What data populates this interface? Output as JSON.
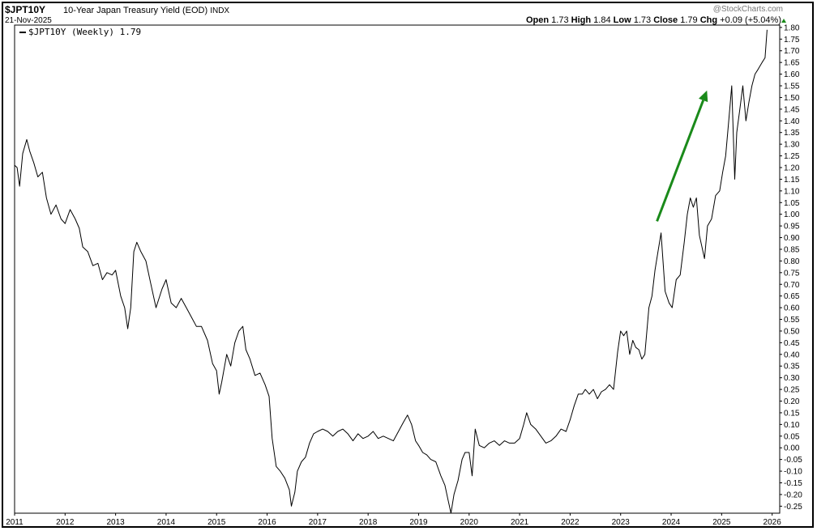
{
  "header": {
    "symbol": "$JPT10Y",
    "name": "10-Year Japan Treasury Yield (EOD)",
    "exchange": "INDX",
    "date": "21-Nov-2025",
    "brand": "@StockCharts.com",
    "ohlc": {
      "open_label": "Open",
      "open": "1.73",
      "high_label": "High",
      "high": "1.84",
      "low_label": "Low",
      "low": "1.73",
      "close_label": "Close",
      "close": "1.79",
      "chg_label": "Chg",
      "chg": "+0.09 (+5.04%)"
    },
    "legend": "$JPT10Y (Weekly) 1.79"
  },
  "colors": {
    "line": "#000000",
    "arrow": "#1a8a1a",
    "up": "#1a8a1a"
  },
  "chart_data": {
    "type": "line",
    "xlabel": "",
    "ylabel": "",
    "xlim": [
      2011.0,
      2026.15
    ],
    "ylim": [
      -0.28,
      1.81
    ],
    "x_tick_labels": [
      "2011",
      "2012",
      "2013",
      "2014",
      "2015",
      "2016",
      "2017",
      "2018",
      "2019",
      "2020",
      "2021",
      "2022",
      "2023",
      "2024",
      "2025",
      "2026"
    ],
    "y_tick_labels": [
      "1.80",
      "1.75",
      "1.70",
      "1.65",
      "1.60",
      "1.55",
      "1.50",
      "1.45",
      "1.40",
      "1.35",
      "1.30",
      "1.25",
      "1.20",
      "1.15",
      "1.10",
      "1.05",
      "1.00",
      "0.95",
      "0.90",
      "0.85",
      "0.80",
      "0.75",
      "0.70",
      "0.65",
      "0.60",
      "0.55",
      "0.50",
      "0.45",
      "0.40",
      "0.35",
      "0.30",
      "0.25",
      "0.20",
      "0.15",
      "0.10",
      "0.05",
      "0.00",
      "-0.05",
      "-0.10",
      "-0.15",
      "-0.20",
      "-0.25"
    ],
    "grid": false,
    "legend_position": "top-left",
    "annotation": {
      "type": "arrow",
      "from": {
        "x": 2023.72,
        "y": 0.97
      },
      "to": {
        "x": 2024.71,
        "y": 1.53
      }
    },
    "series": [
      {
        "name": "$JPT10Y (Weekly)",
        "points": [
          [
            2011.0,
            1.21
          ],
          [
            2011.05,
            1.2
          ],
          [
            2011.1,
            1.12
          ],
          [
            2011.16,
            1.26
          ],
          [
            2011.24,
            1.32
          ],
          [
            2011.3,
            1.27
          ],
          [
            2011.38,
            1.22
          ],
          [
            2011.46,
            1.16
          ],
          [
            2011.55,
            1.18
          ],
          [
            2011.63,
            1.07
          ],
          [
            2011.72,
            1.0
          ],
          [
            2011.82,
            1.04
          ],
          [
            2011.92,
            0.98
          ],
          [
            2012.0,
            0.96
          ],
          [
            2012.1,
            1.02
          ],
          [
            2012.2,
            0.98
          ],
          [
            2012.28,
            0.94
          ],
          [
            2012.35,
            0.86
          ],
          [
            2012.45,
            0.84
          ],
          [
            2012.55,
            0.78
          ],
          [
            2012.65,
            0.79
          ],
          [
            2012.74,
            0.72
          ],
          [
            2012.83,
            0.75
          ],
          [
            2012.93,
            0.74
          ],
          [
            2013.0,
            0.76
          ],
          [
            2013.1,
            0.65
          ],
          [
            2013.18,
            0.6
          ],
          [
            2013.24,
            0.51
          ],
          [
            2013.3,
            0.6
          ],
          [
            2013.36,
            0.84
          ],
          [
            2013.42,
            0.88
          ],
          [
            2013.5,
            0.84
          ],
          [
            2013.6,
            0.8
          ],
          [
            2013.7,
            0.7
          ],
          [
            2013.8,
            0.6
          ],
          [
            2013.92,
            0.68
          ],
          [
            2014.0,
            0.72
          ],
          [
            2014.1,
            0.62
          ],
          [
            2014.2,
            0.6
          ],
          [
            2014.3,
            0.64
          ],
          [
            2014.4,
            0.6
          ],
          [
            2014.5,
            0.56
          ],
          [
            2014.6,
            0.52
          ],
          [
            2014.7,
            0.52
          ],
          [
            2014.82,
            0.46
          ],
          [
            2014.92,
            0.36
          ],
          [
            2015.0,
            0.33
          ],
          [
            2015.05,
            0.23
          ],
          [
            2015.1,
            0.28
          ],
          [
            2015.2,
            0.4
          ],
          [
            2015.28,
            0.35
          ],
          [
            2015.36,
            0.45
          ],
          [
            2015.44,
            0.5
          ],
          [
            2015.52,
            0.52
          ],
          [
            2015.58,
            0.42
          ],
          [
            2015.66,
            0.38
          ],
          [
            2015.76,
            0.31
          ],
          [
            2015.86,
            0.32
          ],
          [
            2015.96,
            0.27
          ],
          [
            2016.04,
            0.22
          ],
          [
            2016.1,
            0.04
          ],
          [
            2016.18,
            -0.08
          ],
          [
            2016.26,
            -0.1
          ],
          [
            2016.35,
            -0.13
          ],
          [
            2016.44,
            -0.18
          ],
          [
            2016.48,
            -0.25
          ],
          [
            2016.55,
            -0.19
          ],
          [
            2016.6,
            -0.1
          ],
          [
            2016.68,
            -0.06
          ],
          [
            2016.76,
            -0.04
          ],
          [
            2016.84,
            0.02
          ],
          [
            2016.92,
            0.06
          ],
          [
            2017.0,
            0.07
          ],
          [
            2017.1,
            0.08
          ],
          [
            2017.2,
            0.07
          ],
          [
            2017.3,
            0.05
          ],
          [
            2017.4,
            0.07
          ],
          [
            2017.5,
            0.08
          ],
          [
            2017.6,
            0.06
          ],
          [
            2017.7,
            0.03
          ],
          [
            2017.8,
            0.06
          ],
          [
            2017.9,
            0.04
          ],
          [
            2018.0,
            0.05
          ],
          [
            2018.1,
            0.07
          ],
          [
            2018.2,
            0.04
          ],
          [
            2018.3,
            0.05
          ],
          [
            2018.4,
            0.04
          ],
          [
            2018.5,
            0.03
          ],
          [
            2018.6,
            0.07
          ],
          [
            2018.7,
            0.11
          ],
          [
            2018.78,
            0.14
          ],
          [
            2018.86,
            0.1
          ],
          [
            2018.94,
            0.03
          ],
          [
            2019.0,
            0.01
          ],
          [
            2019.08,
            -0.02
          ],
          [
            2019.16,
            -0.03
          ],
          [
            2019.24,
            -0.05
          ],
          [
            2019.34,
            -0.06
          ],
          [
            2019.44,
            -0.12
          ],
          [
            2019.52,
            -0.16
          ],
          [
            2019.58,
            -0.22
          ],
          [
            2019.64,
            -0.28
          ],
          [
            2019.7,
            -0.2
          ],
          [
            2019.78,
            -0.14
          ],
          [
            2019.86,
            -0.05
          ],
          [
            2019.92,
            -0.02
          ],
          [
            2020.0,
            -0.02
          ],
          [
            2020.06,
            -0.12
          ],
          [
            2020.12,
            0.08
          ],
          [
            2020.2,
            0.01
          ],
          [
            2020.3,
            0.0
          ],
          [
            2020.4,
            0.02
          ],
          [
            2020.5,
            0.03
          ],
          [
            2020.6,
            0.01
          ],
          [
            2020.7,
            0.03
          ],
          [
            2020.8,
            0.02
          ],
          [
            2020.9,
            0.02
          ],
          [
            2021.0,
            0.04
          ],
          [
            2021.08,
            0.1
          ],
          [
            2021.14,
            0.15
          ],
          [
            2021.22,
            0.1
          ],
          [
            2021.32,
            0.08
          ],
          [
            2021.42,
            0.05
          ],
          [
            2021.52,
            0.02
          ],
          [
            2021.62,
            0.03
          ],
          [
            2021.72,
            0.05
          ],
          [
            2021.82,
            0.08
          ],
          [
            2021.92,
            0.07
          ],
          [
            2022.0,
            0.12
          ],
          [
            2022.08,
            0.18
          ],
          [
            2022.16,
            0.23
          ],
          [
            2022.24,
            0.23
          ],
          [
            2022.3,
            0.25
          ],
          [
            2022.38,
            0.23
          ],
          [
            2022.46,
            0.25
          ],
          [
            2022.54,
            0.21
          ],
          [
            2022.62,
            0.24
          ],
          [
            2022.7,
            0.25
          ],
          [
            2022.78,
            0.27
          ],
          [
            2022.86,
            0.25
          ],
          [
            2022.94,
            0.41
          ],
          [
            2023.0,
            0.5
          ],
          [
            2023.06,
            0.48
          ],
          [
            2023.12,
            0.5
          ],
          [
            2023.18,
            0.4
          ],
          [
            2023.24,
            0.46
          ],
          [
            2023.3,
            0.43
          ],
          [
            2023.36,
            0.42
          ],
          [
            2023.42,
            0.38
          ],
          [
            2023.48,
            0.4
          ],
          [
            2023.56,
            0.6
          ],
          [
            2023.62,
            0.65
          ],
          [
            2023.68,
            0.76
          ],
          [
            2023.74,
            0.84
          ],
          [
            2023.8,
            0.92
          ],
          [
            2023.88,
            0.67
          ],
          [
            2023.96,
            0.62
          ],
          [
            2024.02,
            0.6
          ],
          [
            2024.1,
            0.72
          ],
          [
            2024.18,
            0.74
          ],
          [
            2024.26,
            0.88
          ],
          [
            2024.32,
            1.0
          ],
          [
            2024.38,
            1.07
          ],
          [
            2024.44,
            1.03
          ],
          [
            2024.5,
            1.07
          ],
          [
            2024.56,
            0.91
          ],
          [
            2024.62,
            0.85
          ],
          [
            2024.66,
            0.81
          ],
          [
            2024.72,
            0.95
          ],
          [
            2024.8,
            0.98
          ],
          [
            2024.88,
            1.08
          ],
          [
            2024.96,
            1.1
          ],
          [
            2025.02,
            1.18
          ],
          [
            2025.08,
            1.25
          ],
          [
            2025.14,
            1.4
          ],
          [
            2025.2,
            1.55
          ],
          [
            2025.26,
            1.15
          ],
          [
            2025.3,
            1.35
          ],
          [
            2025.36,
            1.45
          ],
          [
            2025.42,
            1.55
          ],
          [
            2025.48,
            1.4
          ],
          [
            2025.54,
            1.48
          ],
          [
            2025.6,
            1.55
          ],
          [
            2025.66,
            1.6
          ],
          [
            2025.72,
            1.62
          ],
          [
            2025.8,
            1.65
          ],
          [
            2025.86,
            1.67
          ],
          [
            2025.9,
            1.79
          ]
        ]
      }
    ]
  }
}
